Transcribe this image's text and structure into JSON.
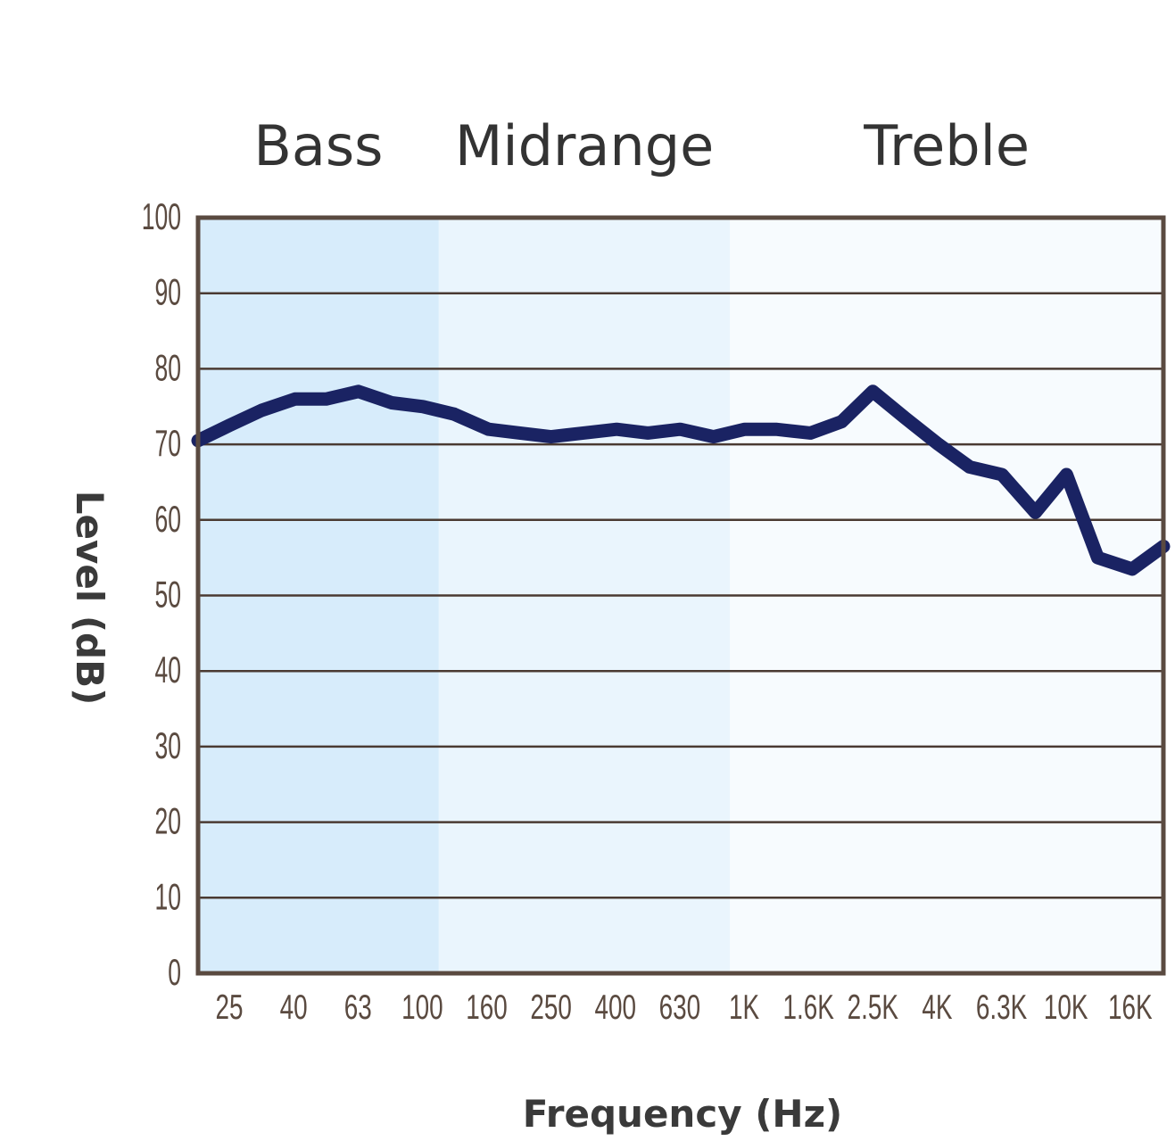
{
  "chart_data": {
    "type": "line",
    "title": "",
    "xlabel": "Frequency (Hz)",
    "ylabel": "Level (dB)",
    "ylim": [
      0,
      100
    ],
    "yticks": [
      0,
      10,
      20,
      30,
      40,
      50,
      60,
      70,
      80,
      90,
      100
    ],
    "x_tick_labels": [
      "25",
      "40",
      "63",
      "100",
      "160",
      "250",
      "400",
      "630",
      "1K",
      "1.6K",
      "2.5K",
      "4K",
      "6.3K",
      "10K",
      "16K"
    ],
    "grid": true,
    "bands": [
      {
        "label": "Bass",
        "color": "#d7ecfb"
      },
      {
        "label": "Midrange",
        "color": "#eaf5fd"
      },
      {
        "label": "Treble",
        "color": "#f7fbfe"
      }
    ],
    "series": [
      {
        "color": "#1a2363",
        "x": [
          20,
          25,
          31.5,
          40,
          50,
          63,
          80,
          100,
          125,
          160,
          200,
          250,
          315,
          400,
          500,
          630,
          800,
          1000,
          1250,
          1600,
          2000,
          2500,
          3150,
          4000,
          5000,
          6300,
          8000,
          10000,
          12500,
          16000,
          20000
        ],
        "values": [
          70.5,
          72.5,
          74.5,
          76,
          76,
          77,
          75.5,
          75,
          74,
          72,
          71.5,
          71,
          71.5,
          72,
          71.5,
          72,
          71,
          72,
          72,
          71.5,
          73,
          77,
          73.5,
          70,
          67,
          66,
          61,
          66,
          55,
          53.5,
          56.5
        ]
      }
    ],
    "axis_color": "#5a4a40",
    "grid_color": "#4a3a32"
  }
}
